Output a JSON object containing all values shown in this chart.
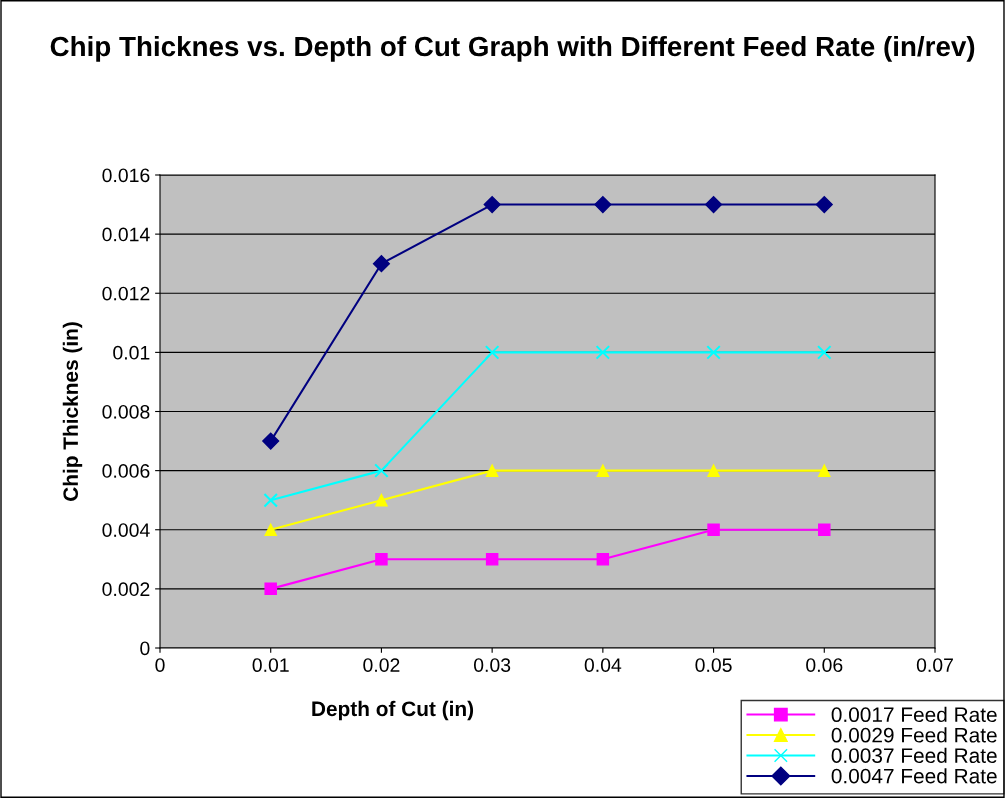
{
  "chart_data": {
    "type": "line",
    "title": "Chip Thicknes vs. Depth of Cut Graph with Different Feed Rate (in/rev)",
    "xlabel": "Depth of Cut (in)",
    "ylabel": "Chip Thicknes (in)",
    "x": [
      0.01,
      0.02,
      0.03,
      0.04,
      0.05,
      0.06
    ],
    "series": [
      {
        "name": "0.0017 Feed Rate",
        "color": "#ff00ff",
        "marker": "square",
        "values": [
          0.002,
          0.003,
          0.003,
          0.003,
          0.004,
          0.004
        ]
      },
      {
        "name": "0.0029 Feed Rate",
        "color": "#ffff00",
        "marker": "triangle",
        "values": [
          0.004,
          0.005,
          0.006,
          0.006,
          0.006,
          0.006
        ]
      },
      {
        "name": "0.0037 Feed Rate",
        "color": "#00ffff",
        "marker": "cross",
        "values": [
          0.005,
          0.006,
          0.01,
          0.01,
          0.01,
          0.01
        ]
      },
      {
        "name": "0.0047 Feed Rate",
        "color": "#000080",
        "marker": "diamond",
        "values": [
          0.007,
          0.013,
          0.015,
          0.015,
          0.015,
          0.015
        ]
      }
    ],
    "xlim": [
      0,
      0.07
    ],
    "xticks": [
      0,
      0.01,
      0.02,
      0.03,
      0.04,
      0.05,
      0.06,
      0.07
    ],
    "ylim": [
      0,
      0.016
    ],
    "yticks": [
      0,
      0.002,
      0.004,
      0.006,
      0.008,
      0.01,
      0.012,
      0.014,
      0.016
    ],
    "grid": "y",
    "legend": "bottom right",
    "line_style": "solid"
  }
}
